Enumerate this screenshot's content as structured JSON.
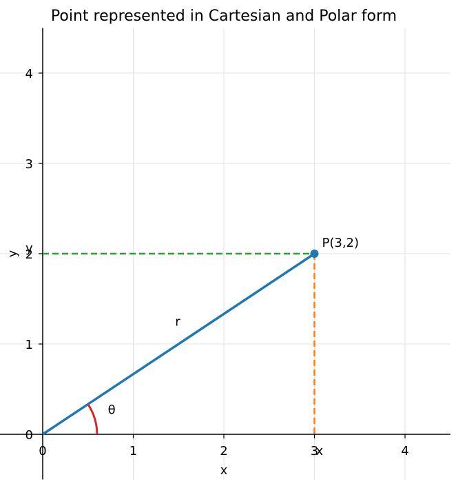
{
  "chart_data": {
    "type": "scatter",
    "title": "Point represented in Cartesian and Polar form",
    "xlabel": "x",
    "ylabel": "y",
    "xlim": [
      -0.5,
      4.5
    ],
    "ylim": [
      -0.5,
      4.5
    ],
    "grid": true,
    "xticks": [
      "0",
      "1",
      "2",
      "3",
      "4"
    ],
    "yticks": [
      "0",
      "1",
      "2",
      "3",
      "4"
    ],
    "point": {
      "x": 3,
      "y": 2,
      "label": "P(3,2)"
    },
    "radius_label": "r",
    "angle_label": "θ",
    "projection_x_label": "x",
    "projection_y_label": "y",
    "colors": {
      "radius": "#1f77b4",
      "point": "#1f77b4",
      "x_projection": "#ff7f0e",
      "y_projection": "#2ca02c",
      "angle_arc": "#d62728",
      "grid": "#e3e3e3"
    }
  }
}
